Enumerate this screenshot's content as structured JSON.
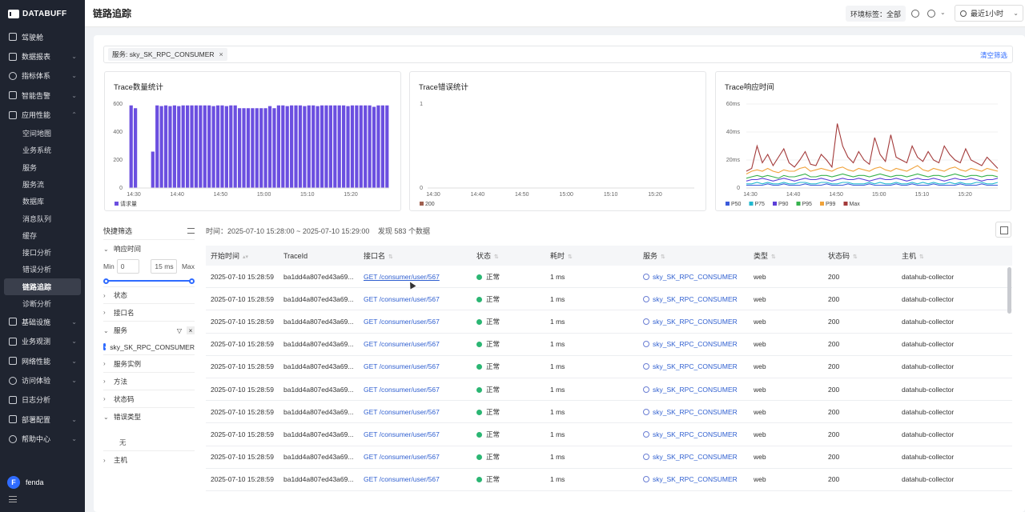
{
  "brand": "DATABUFF",
  "page_title": "链路追踪",
  "header": {
    "env_tag_label": "环境标签：",
    "env_tag_value": "全部",
    "time_range": "最近1小时"
  },
  "nav": [
    {
      "label": "驾驶舱",
      "icon": "monitor-icon",
      "expandable": false
    },
    {
      "label": "数据报表",
      "icon": "report-icon",
      "expandable": true
    },
    {
      "label": "指标体系",
      "icon": "metrics-icon",
      "expandable": true
    },
    {
      "label": "智能告警",
      "icon": "alarm-icon",
      "expandable": true
    },
    {
      "label": "应用性能",
      "icon": "app-icon",
      "expandable": true,
      "expanded": true
    }
  ],
  "nav_sub": [
    "空间地图",
    "业务系统",
    "服务",
    "服务流",
    "数据库",
    "消息队列",
    "缓存",
    "接口分析",
    "错误分析",
    "链路追踪",
    "诊断分析"
  ],
  "nav_sub_active": "链路追踪",
  "nav_after": [
    {
      "label": "基础设施",
      "icon": "infra-icon"
    },
    {
      "label": "业务观测",
      "icon": "business-icon"
    },
    {
      "label": "网络性能",
      "icon": "network-icon"
    },
    {
      "label": "访问体验",
      "icon": "experience-icon"
    },
    {
      "label": "日志分析",
      "icon": "log-icon"
    },
    {
      "label": "部署配置",
      "icon": "deploy-icon"
    },
    {
      "label": "帮助中心",
      "icon": "help-icon"
    }
  ],
  "user": {
    "initial": "F",
    "name": "fenda"
  },
  "filter": {
    "chip": "服务: sky_SK_RPC_CONSUMER",
    "clear_label": "清空筛选"
  },
  "quick_filter": {
    "title": "快捷筛选",
    "response_time_label": "响应时间",
    "min_label": "Min",
    "min_value": "0",
    "max_value": "15 ms",
    "max_label": "Max",
    "slider_min": 0,
    "slider_max": 1,
    "status_label": "状态",
    "endpoint_label": "接口名",
    "service_label": "服务",
    "service_selected": "sky_SK_RPC_CONSUMER",
    "instance_label": "服务实例",
    "method_label": "方法",
    "code_label": "状态码",
    "error_type_label": "错误类型",
    "error_type_empty": "无",
    "host_label": "主机"
  },
  "summary": {
    "time": "时间：2025-07-10 15:28:00 ~ 2025-07-10 15:29:00",
    "found": "发现 583 个数据"
  },
  "table": {
    "columns": [
      "开始时间",
      "TraceId",
      "接口名",
      "状态",
      "耗时",
      "服务",
      "类型",
      "状态码",
      "主机"
    ],
    "rows": [
      {
        "start": "2025-07-10 15:28:59",
        "trace": "ba1dd4a807ed43a69...",
        "endpoint": "GET /consumer/user/567",
        "status": "正常",
        "duration": "1 ms",
        "dur_ratio": 0.1,
        "service": "sky_SK_RPC_CONSUMER",
        "type": "web",
        "code": "200",
        "host": "datahub-collector"
      },
      {
        "start": "2025-07-10 15:28:59",
        "trace": "ba1dd4a807ed43a69...",
        "endpoint": "GET /consumer/user/567",
        "status": "正常",
        "duration": "1 ms",
        "dur_ratio": 0.1,
        "service": "sky_SK_RPC_CONSUMER",
        "type": "web",
        "code": "200",
        "host": "datahub-collector"
      },
      {
        "start": "2025-07-10 15:28:59",
        "trace": "ba1dd4a807ed43a69...",
        "endpoint": "GET /consumer/user/567",
        "status": "正常",
        "duration": "1 ms",
        "dur_ratio": 0.1,
        "service": "sky_SK_RPC_CONSUMER",
        "type": "web",
        "code": "200",
        "host": "datahub-collector"
      },
      {
        "start": "2025-07-10 15:28:59",
        "trace": "ba1dd4a807ed43a69...",
        "endpoint": "GET /consumer/user/567",
        "status": "正常",
        "duration": "1 ms",
        "dur_ratio": 0.1,
        "service": "sky_SK_RPC_CONSUMER",
        "type": "web",
        "code": "200",
        "host": "datahub-collector"
      },
      {
        "start": "2025-07-10 15:28:59",
        "trace": "ba1dd4a807ed43a69...",
        "endpoint": "GET /consumer/user/567",
        "status": "正常",
        "duration": "1 ms",
        "dur_ratio": 0.1,
        "service": "sky_SK_RPC_CONSUMER",
        "type": "web",
        "code": "200",
        "host": "datahub-collector"
      },
      {
        "start": "2025-07-10 15:28:59",
        "trace": "ba1dd4a807ed43a69...",
        "endpoint": "GET /consumer/user/567",
        "status": "正常",
        "duration": "1 ms",
        "dur_ratio": 0.1,
        "service": "sky_SK_RPC_CONSUMER",
        "type": "web",
        "code": "200",
        "host": "datahub-collector"
      },
      {
        "start": "2025-07-10 15:28:59",
        "trace": "ba1dd4a807ed43a69...",
        "endpoint": "GET /consumer/user/567",
        "status": "正常",
        "duration": "1 ms",
        "dur_ratio": 0.1,
        "service": "sky_SK_RPC_CONSUMER",
        "type": "web",
        "code": "200",
        "host": "datahub-collector"
      },
      {
        "start": "2025-07-10 15:28:59",
        "trace": "ba1dd4a807ed43a69...",
        "endpoint": "GET /consumer/user/567",
        "status": "正常",
        "duration": "1 ms",
        "dur_ratio": 0.1,
        "service": "sky_SK_RPC_CONSUMER",
        "type": "web",
        "code": "200",
        "host": "datahub-collector"
      },
      {
        "start": "2025-07-10 15:28:59",
        "trace": "ba1dd4a807ed43a69...",
        "endpoint": "GET /consumer/user/567",
        "status": "正常",
        "duration": "1 ms",
        "dur_ratio": 0.1,
        "service": "sky_SK_RPC_CONSUMER",
        "type": "web",
        "code": "200",
        "host": "datahub-collector"
      },
      {
        "start": "2025-07-10 15:28:59",
        "trace": "ba1dd4a807ed43a69...",
        "endpoint": "GET /consumer/user/567",
        "status": "正常",
        "duration": "1 ms",
        "dur_ratio": 0.1,
        "service": "sky_SK_RPC_CONSUMER",
        "type": "web",
        "code": "200",
        "host": "datahub-collector"
      }
    ]
  },
  "colors": {
    "accent": "#2f6bff",
    "bar": "#6b4fe0",
    "ok": "#2bb673",
    "sidebar": "#1f2430"
  },
  "chart_data": [
    {
      "type": "bar",
      "title": "Trace数量统计",
      "legend": [
        "请求量"
      ],
      "ylim": [
        0,
        600
      ],
      "yticks": [
        0,
        200,
        400,
        600
      ],
      "xticks": [
        "14:30",
        "14:40",
        "14:50",
        "15:00",
        "15:10",
        "15:20"
      ],
      "values": [
        590,
        570,
        0,
        0,
        0,
        260,
        590,
        585,
        590,
        585,
        590,
        585,
        590,
        590,
        590,
        590,
        590,
        590,
        590,
        585,
        590,
        590,
        585,
        590,
        590,
        570,
        570,
        570,
        570,
        570,
        570,
        570,
        585,
        570,
        590,
        590,
        585,
        590,
        590,
        590,
        585,
        590,
        590,
        585,
        590,
        590,
        590,
        590,
        590,
        590,
        585,
        590,
        590,
        590,
        590,
        590,
        580,
        590,
        590,
        590
      ]
    },
    {
      "type": "line",
      "title": "Trace错误统计",
      "legend": [
        "200"
      ],
      "ylim": [
        0,
        1
      ],
      "yticks": [
        0,
        1
      ],
      "xticks": [
        "14:30",
        "14:40",
        "14:50",
        "15:00",
        "15:10",
        "15:20"
      ],
      "series": []
    },
    {
      "type": "line",
      "title": "Trace响应时间",
      "ylim": [
        0,
        60
      ],
      "yticks": [
        "0",
        "20ms",
        "40ms",
        "60ms"
      ],
      "xticks": [
        "14:30",
        "14:40",
        "14:50",
        "15:00",
        "15:10",
        "15:20"
      ],
      "series": [
        {
          "name": "P50",
          "color": "#3b5bdb",
          "values": [
            2,
            2,
            2,
            2,
            3,
            2,
            2,
            3,
            2,
            2,
            2,
            3,
            2,
            2,
            2,
            3,
            2,
            2,
            2,
            3,
            2,
            2,
            2,
            3,
            2,
            2,
            2,
            2,
            3,
            2,
            2,
            3,
            2,
            2,
            2,
            3,
            2,
            2,
            2,
            2,
            3,
            2,
            2,
            2,
            3,
            2,
            2,
            2
          ]
        },
        {
          "name": "P75",
          "color": "#22b8cf",
          "values": [
            3,
            3,
            4,
            3,
            4,
            3,
            3,
            4,
            3,
            3,
            4,
            4,
            3,
            3,
            4,
            4,
            3,
            3,
            4,
            4,
            3,
            3,
            3,
            4,
            3,
            4,
            3,
            3,
            4,
            3,
            3,
            4,
            3,
            4,
            3,
            4,
            3,
            3,
            4,
            3,
            4,
            3,
            3,
            4,
            4,
            3,
            3,
            4
          ]
        },
        {
          "name": "P90",
          "color": "#5c3fd8",
          "values": [
            5,
            6,
            6,
            7,
            6,
            5,
            6,
            7,
            6,
            5,
            6,
            7,
            6,
            6,
            7,
            6,
            5,
            6,
            7,
            6,
            6,
            7,
            6,
            5,
            6,
            7,
            6,
            6,
            7,
            6,
            5,
            6,
            7,
            6,
            6,
            7,
            6,
            5,
            6,
            7,
            6,
            6,
            7,
            6,
            5,
            6,
            6,
            7
          ]
        },
        {
          "name": "P95",
          "color": "#37b24d",
          "values": [
            7,
            8,
            9,
            8,
            9,
            8,
            7,
            9,
            8,
            8,
            9,
            10,
            8,
            8,
            9,
            9,
            8,
            9,
            10,
            9,
            8,
            9,
            9,
            8,
            9,
            10,
            9,
            8,
            9,
            9,
            8,
            9,
            10,
            9,
            8,
            9,
            9,
            8,
            9,
            10,
            9,
            8,
            9,
            9,
            8,
            9,
            9,
            8
          ]
        },
        {
          "name": "P99",
          "color": "#f0a23a",
          "values": [
            10,
            12,
            13,
            12,
            14,
            12,
            11,
            13,
            12,
            12,
            14,
            15,
            12,
            13,
            14,
            13,
            12,
            14,
            15,
            13,
            12,
            14,
            13,
            12,
            14,
            15,
            13,
            12,
            14,
            13,
            12,
            14,
            16,
            13,
            12,
            14,
            13,
            12,
            14,
            15,
            13,
            12,
            14,
            13,
            12,
            14,
            13,
            12
          ]
        },
        {
          "name": "Max",
          "color": "#a33a3a",
          "values": [
            12,
            14,
            30,
            18,
            24,
            16,
            22,
            28,
            18,
            15,
            20,
            26,
            17,
            16,
            24,
            20,
            15,
            46,
            30,
            22,
            18,
            26,
            20,
            17,
            36,
            24,
            19,
            38,
            22,
            20,
            18,
            30,
            22,
            19,
            26,
            20,
            18,
            30,
            24,
            20,
            18,
            28,
            20,
            18,
            16,
            22,
            18,
            14
          ]
        }
      ]
    }
  ]
}
